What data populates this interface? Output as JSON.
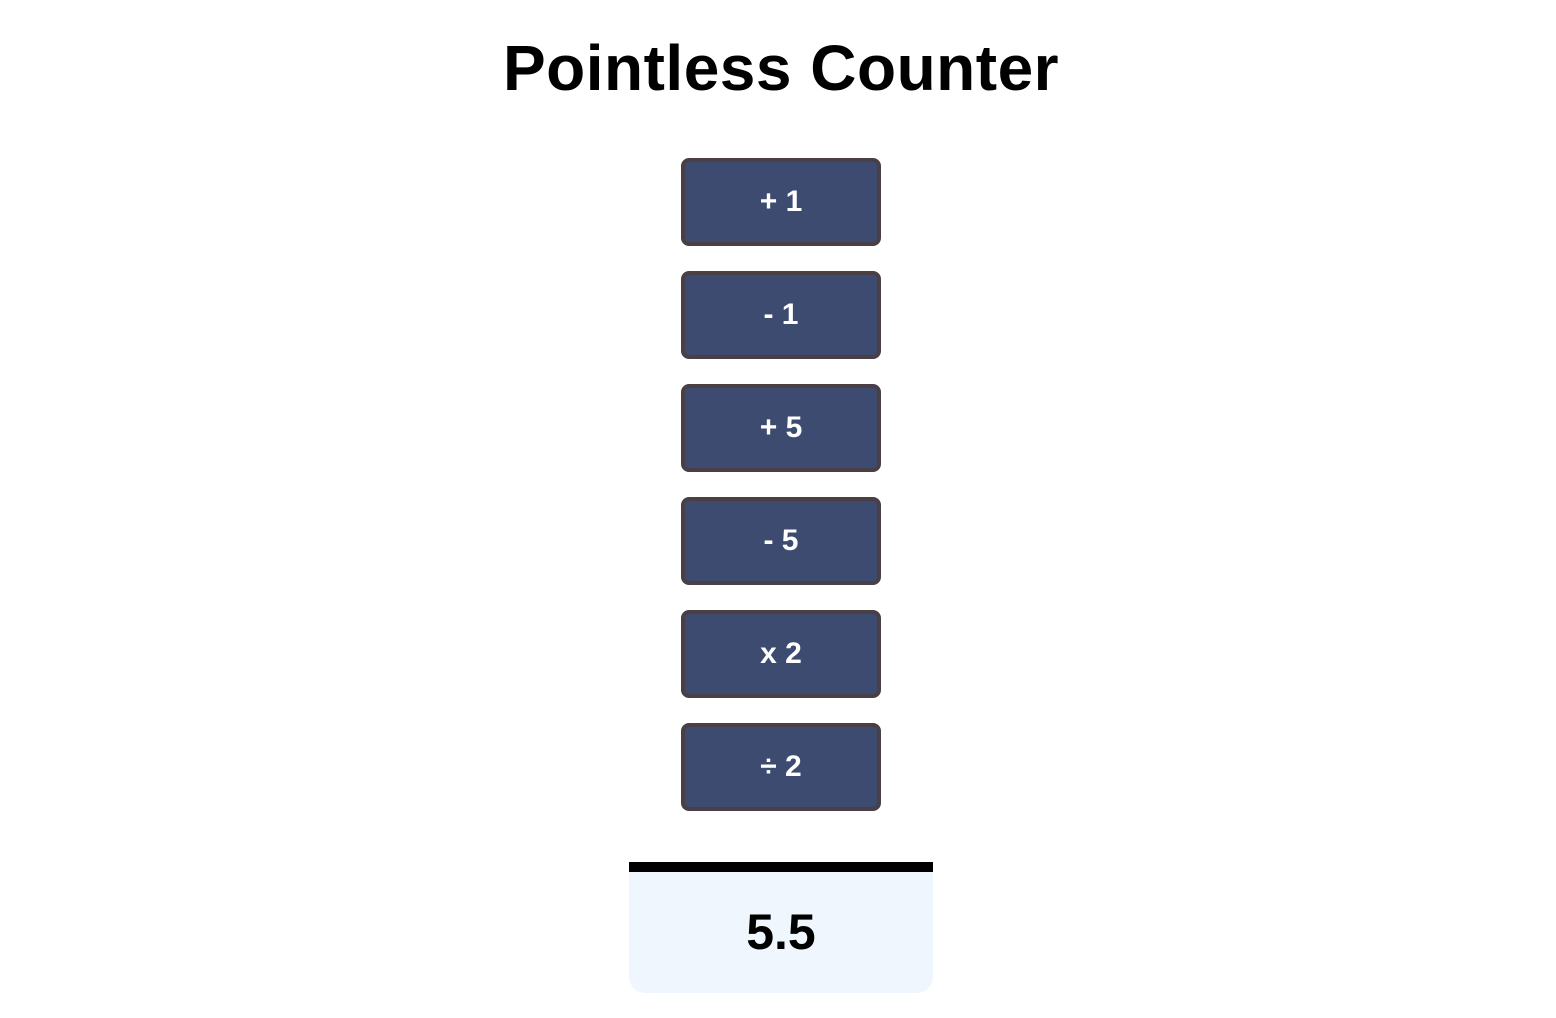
{
  "app": {
    "title": "Pointless Counter"
  },
  "buttons": [
    {
      "label": "+ 1"
    },
    {
      "label": "- 1"
    },
    {
      "label": "+ 5"
    },
    {
      "label": "- 5"
    },
    {
      "label": "x 2"
    },
    {
      "label": "÷ 2"
    }
  ],
  "counter": {
    "value": "5.5"
  },
  "colors": {
    "button_bg": "#3c4b6f",
    "button_border": "#4a3f45",
    "button_text": "#ffffff",
    "display_bg": "#f0f6fd",
    "display_border": "#000000"
  }
}
